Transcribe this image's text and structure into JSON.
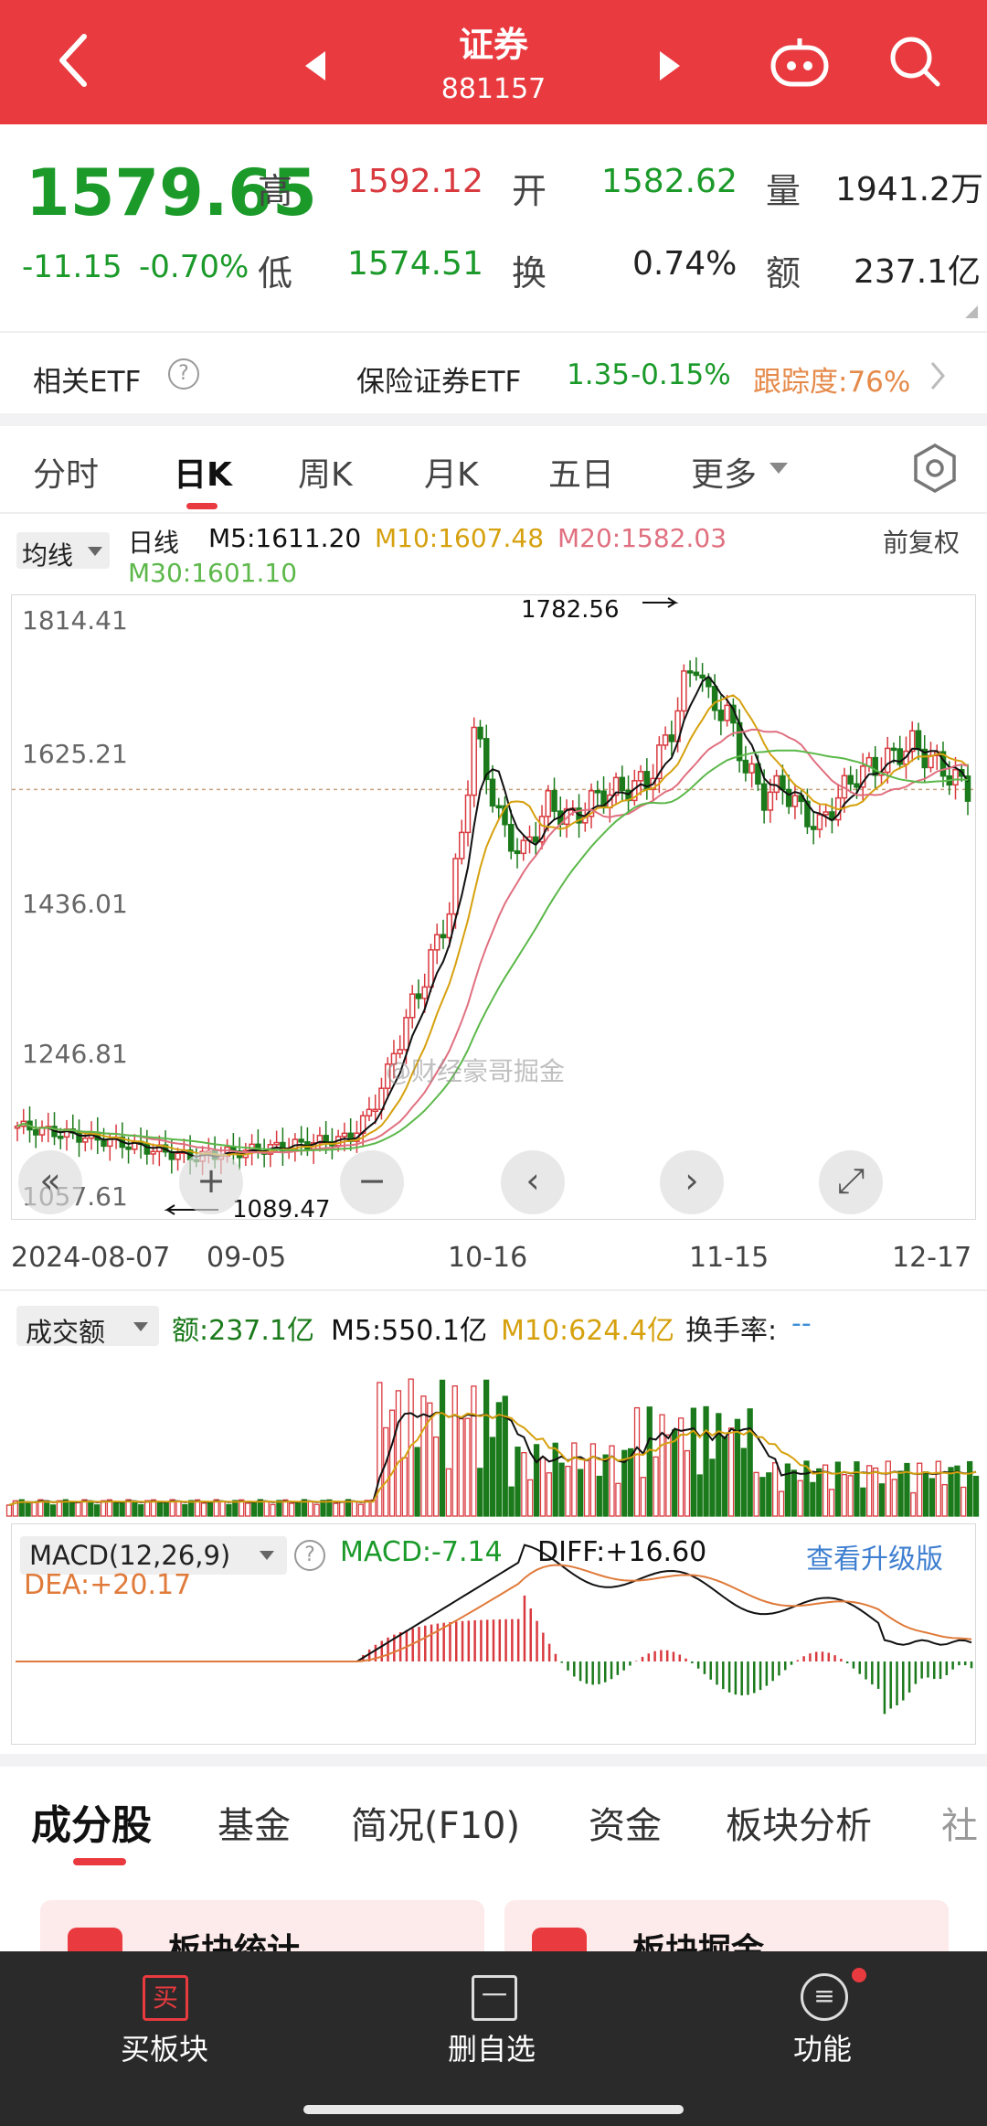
{
  "header": {
    "title": "证券",
    "code": "881157"
  },
  "quote": {
    "price": "1579.65",
    "change": "-11.15",
    "change_pct": "-0.70%",
    "high_label": "高",
    "high": "1592.12",
    "open_label": "开",
    "open": "1582.62",
    "vol_label": "量",
    "vol": "1941.2万",
    "low_label": "低",
    "low": "1574.51",
    "turnover_label": "换",
    "turnover": "0.74%",
    "amount_label": "额",
    "amount": "237.1亿"
  },
  "etf": {
    "label": "相关ETF",
    "name": "保险证券ETF",
    "price": "1.35",
    "pct": "-0.15%",
    "track": "跟踪度:76%"
  },
  "period_tabs": [
    "分时",
    "日K",
    "周K",
    "月K",
    "五日",
    "更多"
  ],
  "ma_legend": {
    "selector": "均线",
    "line_type": "日线",
    "m5": "M5:1611.20",
    "m10": "M10:1607.48",
    "m20": "M20:1582.03",
    "m30": "M30:1601.10",
    "adjust": "前复权"
  },
  "kline": {
    "y_ticks": [
      "1814.41",
      "1625.21",
      "1436.01",
      "1246.81",
      "1057.61"
    ],
    "x_ticks": [
      "2024-08-07",
      "09-05",
      "10-16",
      "11-15",
      "12-17"
    ],
    "high_marker": "1782.56",
    "low_marker": "1089.47",
    "watermark": "@财经豪哥掘金",
    "ylim": [
      1057.61,
      1814.41
    ],
    "colors": {
      "up": "#d93a3f",
      "down": "#1b7a1b",
      "m5": "#111111",
      "m10": "#d6a10f",
      "m20": "#e07080",
      "m30": "#5cb84a"
    }
  },
  "volume_legend": {
    "selector": "成交额",
    "amount": "额:237.1亿",
    "m5": "M5:550.1亿",
    "m10": "M10:624.4亿",
    "turnover": "换手率:",
    "turnover_val": "--"
  },
  "macd_legend": {
    "selector": "MACD(12,26,9)",
    "macd": "MACD:-7.14",
    "diff": "DIFF:+16.60",
    "dea": "DEA:+20.17",
    "upgrade": "查看升级版"
  },
  "bottom_tabs": [
    "成分股",
    "基金",
    "简况(F10)",
    "资金",
    "板块分析",
    "社"
  ],
  "cards": [
    "板块统计",
    "板块掘金"
  ],
  "nav": [
    {
      "icon": "买",
      "label": "买板块"
    },
    {
      "icon": "一",
      "label": "删自选"
    },
    {
      "icon": "≡",
      "label": "功能"
    }
  ]
}
